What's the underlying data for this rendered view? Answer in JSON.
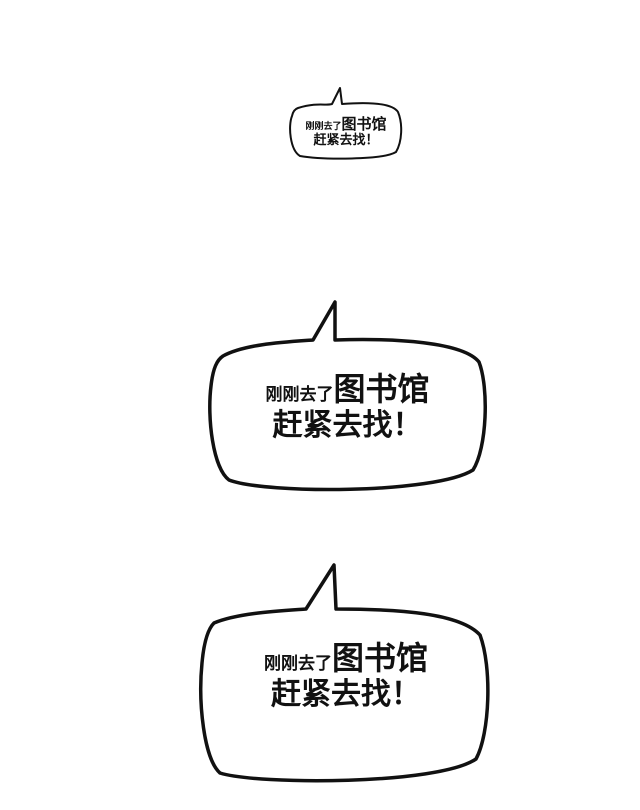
{
  "bubbles": [
    {
      "line1_small": "刚刚去了",
      "line1_big": "图书馆",
      "line2": "赶紧去找！"
    },
    {
      "line1_small": "刚刚去了",
      "line1_big": "图书馆",
      "line2": "赶紧去找！"
    },
    {
      "line1_small": "刚刚去了",
      "line1_big": "图书馆",
      "line2": "赶紧去找！"
    }
  ],
  "colors": {
    "background": "#ffffff",
    "ink": "#111111"
  }
}
